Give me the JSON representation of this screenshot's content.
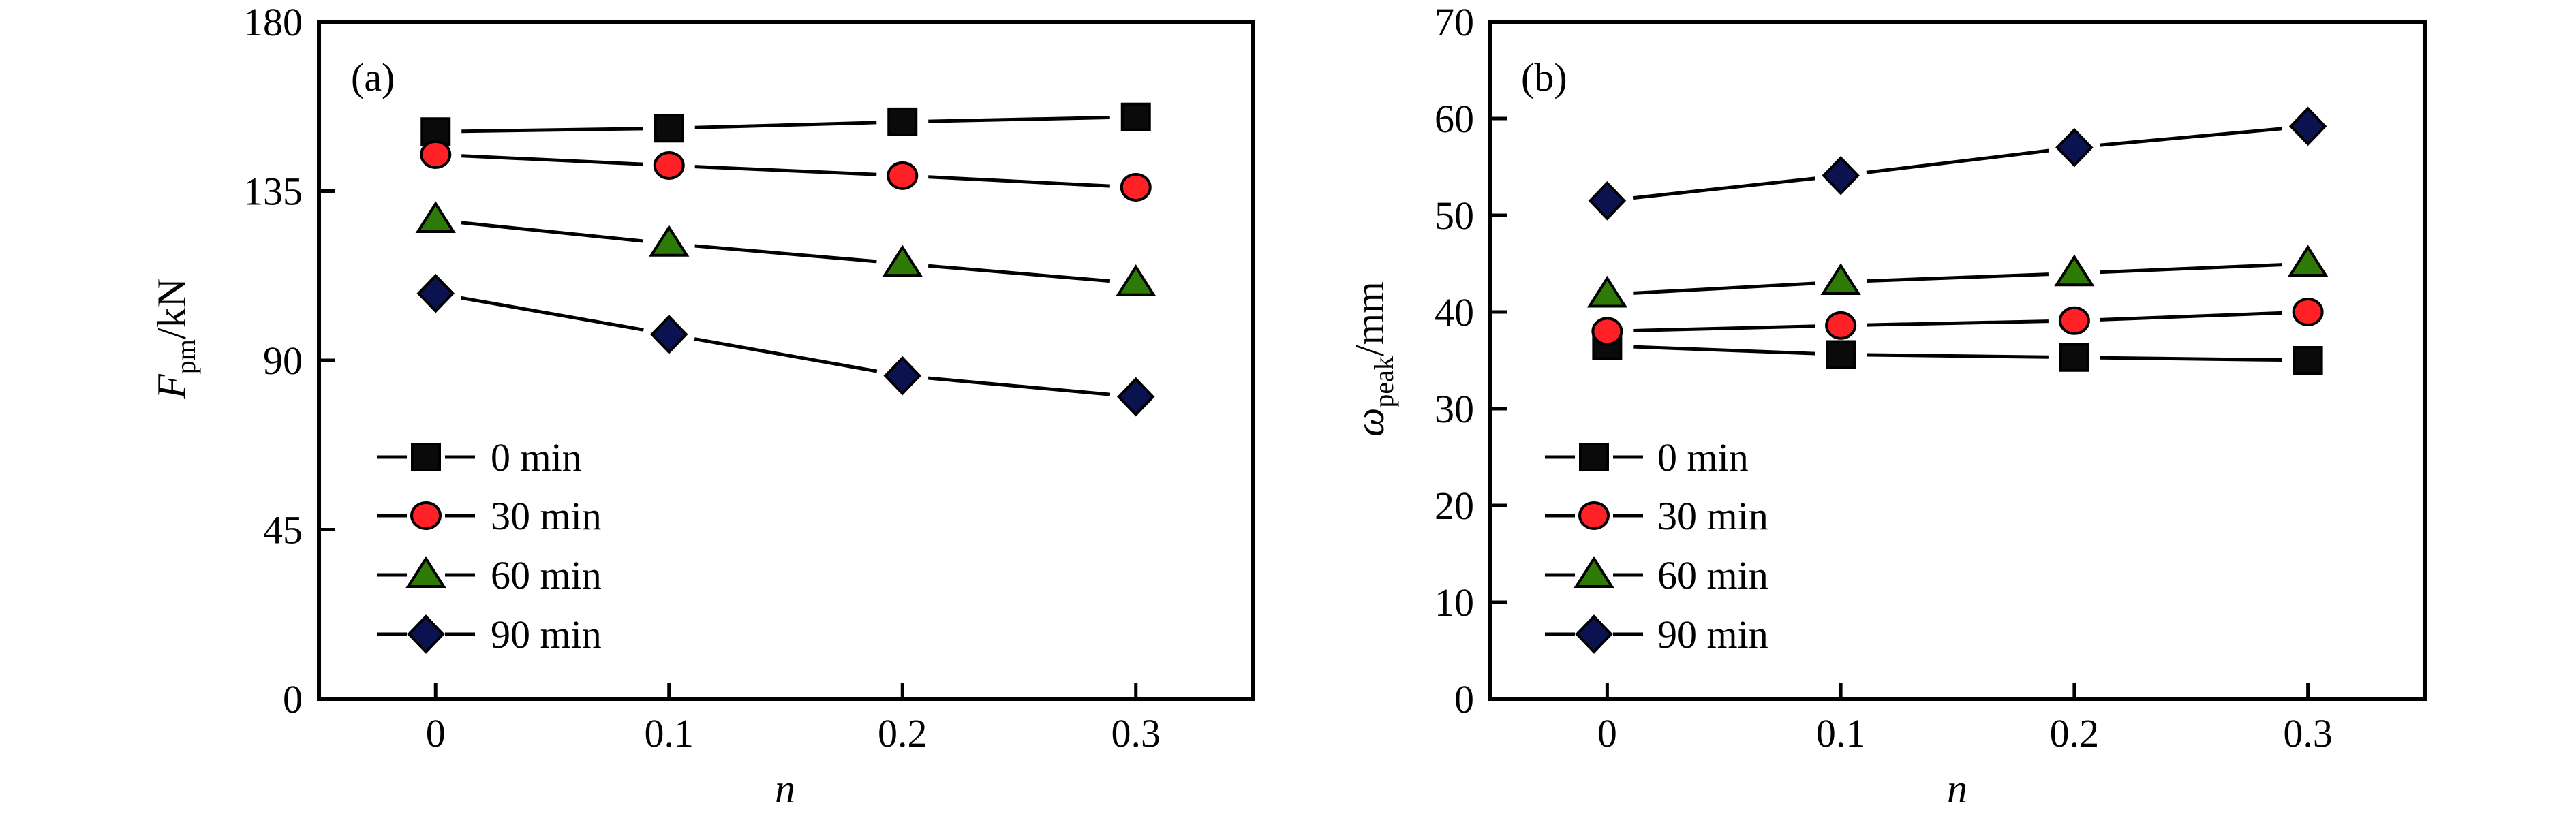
{
  "chart_data": [
    {
      "type": "line",
      "panel_label": "(a)",
      "xlabel": "n",
      "ylabel": {
        "symbol": "F",
        "subscript": "pm",
        "unit": "/kN"
      },
      "xlim": [
        -0.05,
        0.35
      ],
      "ylim": [
        0,
        180
      ],
      "xticks": [
        0,
        0.1,
        0.2,
        0.3
      ],
      "xtick_labels": [
        "0",
        "0.1",
        "0.2",
        "0.3"
      ],
      "yticks": [
        0,
        45,
        90,
        135,
        180
      ],
      "ytick_labels": [
        "0",
        "45",
        "90",
        "135",
        "180"
      ],
      "grid": false,
      "legend_position": "lower-left",
      "x": [
        0,
        0.1,
        0.2,
        0.3
      ],
      "series": [
        {
          "name": "0 min",
          "marker": "square",
          "color": "#0a0a0a",
          "values": [
            150.8,
            151.7,
            153.4,
            154.7
          ]
        },
        {
          "name": "30 min",
          "marker": "circle",
          "color": "#ff2126",
          "values": [
            144.7,
            141.8,
            139.1,
            136.0
          ]
        },
        {
          "name": "60 min",
          "marker": "triangle",
          "color": "#2d7a07",
          "values": [
            127.3,
            121.0,
            115.7,
            110.5
          ]
        },
        {
          "name": "90 min",
          "marker": "diamond",
          "color": "#0b1250",
          "values": [
            107.8,
            96.9,
            85.9,
            80.3
          ]
        }
      ]
    },
    {
      "type": "line",
      "panel_label": "(b)",
      "xlabel": "n",
      "ylabel": {
        "symbol": "ω",
        "subscript": "peak",
        "unit": "/mm"
      },
      "xlim": [
        -0.05,
        0.35
      ],
      "ylim": [
        0,
        70
      ],
      "xticks": [
        0,
        0.1,
        0.2,
        0.3
      ],
      "xtick_labels": [
        "0",
        "0.1",
        "0.2",
        "0.3"
      ],
      "yticks": [
        0,
        10,
        20,
        30,
        40,
        50,
        60,
        70
      ],
      "ytick_labels": [
        "0",
        "10",
        "20",
        "30",
        "40",
        "50",
        "60",
        "70"
      ],
      "grid": false,
      "legend_position": "lower-left",
      "x": [
        0,
        0.1,
        0.2,
        0.3
      ],
      "series": [
        {
          "name": "0 min",
          "marker": "square",
          "color": "#0a0a0a",
          "values": [
            36.5,
            35.6,
            35.3,
            35.0
          ]
        },
        {
          "name": "30 min",
          "marker": "circle",
          "color": "#ff2126",
          "values": [
            38.0,
            38.6,
            39.1,
            40.0
          ]
        },
        {
          "name": "60 min",
          "marker": "triangle",
          "color": "#2d7a07",
          "values": [
            41.8,
            43.1,
            44.0,
            45.0
          ]
        },
        {
          "name": "90 min",
          "marker": "diamond",
          "color": "#0b1250",
          "values": [
            51.5,
            54.1,
            57.0,
            59.2
          ]
        }
      ]
    }
  ]
}
